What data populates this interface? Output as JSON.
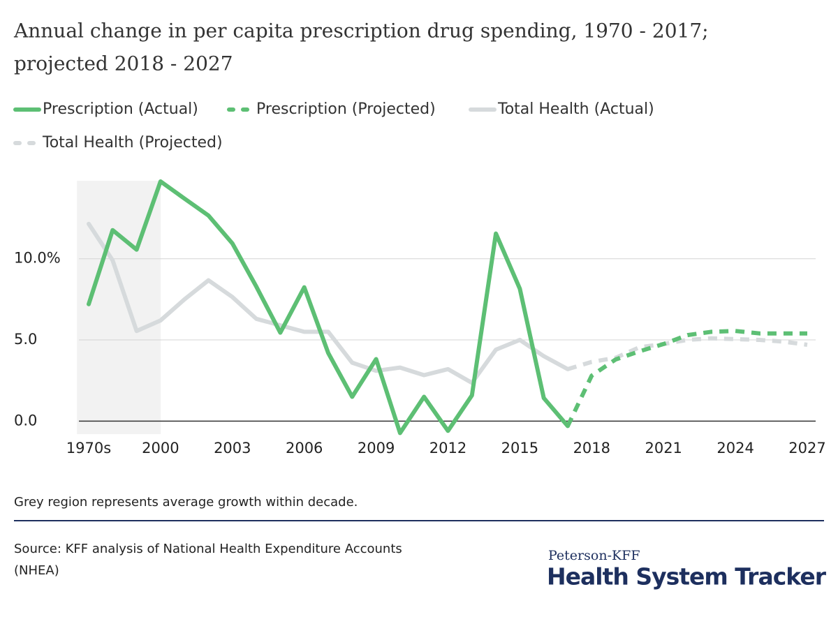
{
  "chart_data": {
    "type": "line",
    "title": "Annual change in per capita prescription drug spending, 1970 - 2017;",
    "subtitle": "projected 2018 - 2027",
    "categories": [
      "1970s",
      null,
      null,
      "2000",
      null,
      null,
      "2003",
      null,
      null,
      "2006",
      null,
      null,
      "2009",
      null,
      null,
      "2012",
      null,
      null,
      "2015",
      null,
      null,
      "2018",
      null,
      null,
      "2021",
      null,
      null,
      "2024",
      null,
      null,
      "2027"
    ],
    "series": [
      {
        "name": "Prescription (Actual)",
        "color": "#5dbf74",
        "dashed": false,
        "values": [
          7.2,
          11.76,
          10.56,
          14.76,
          13.7,
          12.66,
          10.94,
          8.28,
          5.45,
          8.24,
          4.2,
          1.5,
          3.82,
          -0.73,
          1.5,
          -0.6,
          1.59,
          11.55,
          8.15,
          1.42,
          -0.3,
          null,
          null,
          null,
          null,
          null,
          null,
          null,
          null,
          null,
          null
        ]
      },
      {
        "name": "Prescription (Projected)",
        "color": "#5dbf74",
        "dashed": true,
        "values": [
          null,
          null,
          null,
          null,
          null,
          null,
          null,
          null,
          null,
          null,
          null,
          null,
          null,
          null,
          null,
          null,
          null,
          null,
          null,
          null,
          -0.3,
          2.8,
          3.8,
          4.3,
          4.75,
          5.3,
          5.5,
          5.55,
          5.4,
          5.4,
          5.4
        ]
      },
      {
        "name": "Total Health (Actual)",
        "color": "#d6dadc",
        "dashed": false,
        "values": [
          12.15,
          9.9,
          5.55,
          6.2,
          7.5,
          8.67,
          7.64,
          6.3,
          5.9,
          5.5,
          5.5,
          3.6,
          3.1,
          3.3,
          2.83,
          3.2,
          2.36,
          4.4,
          5.0,
          4.0,
          3.2,
          null,
          null,
          null,
          null,
          null,
          null,
          null,
          null,
          null,
          null
        ]
      },
      {
        "name": "Total Health (Projected)",
        "color": "#d6dadc",
        "dashed": true,
        "values": [
          null,
          null,
          null,
          null,
          null,
          null,
          null,
          null,
          null,
          null,
          null,
          null,
          null,
          null,
          null,
          null,
          null,
          null,
          null,
          null,
          3.2,
          3.65,
          3.9,
          4.55,
          4.75,
          5.0,
          5.1,
          5.05,
          5.0,
          4.9,
          4.7
        ]
      }
    ],
    "ylim": [
      -0.8,
      14.8
    ],
    "yticks": [
      {
        "value": 0,
        "label": "0.0"
      },
      {
        "value": 5,
        "label": "5.0"
      },
      {
        "value": 10,
        "label": "10.0%"
      }
    ],
    "grid": true,
    "shaded_categories": [
      0,
      3
    ],
    "note": "Grey region represents average growth within decade.",
    "source": "Source: KFF analysis of National Health Expenditure Accounts",
    "source_line2": "(NHEA)",
    "brand_top": "Peterson-KFF",
    "brand": "Health System Tracker"
  }
}
